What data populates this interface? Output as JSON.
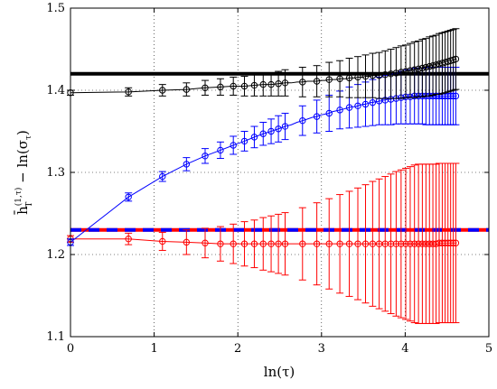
{
  "chart_data": {
    "type": "line",
    "xlabel": "ln(τ)",
    "ylabel": {
      "base": "h̄",
      "sup": "(1,τ)",
      "sub": "T",
      "rest": " − ln(σ",
      "rest_sub": "τ",
      "close": ")"
    },
    "xlim": [
      0,
      5
    ],
    "ylim": [
      1.1,
      1.5
    ],
    "xticks": [
      "0",
      "1",
      "2",
      "3",
      "4",
      "5"
    ],
    "yticks": [
      "1.1",
      "1.2",
      "1.3",
      "1.4",
      "1.5"
    ],
    "grid": true,
    "x": [
      0,
      0.693,
      1.099,
      1.386,
      1.609,
      1.792,
      1.946,
      2.079,
      2.197,
      2.303,
      2.398,
      2.485,
      2.565,
      2.639,
      2.708,
      2.773,
      2.833,
      2.89,
      2.944,
      2.996,
      3.045,
      3.091,
      3.135,
      3.178,
      3.219,
      3.258,
      3.296,
      3.332,
      3.367,
      3.401,
      3.434,
      3.466,
      3.497,
      3.526,
      3.555,
      3.584,
      3.611,
      3.638,
      3.664,
      3.689,
      3.714,
      3.738,
      3.761,
      3.784,
      3.807,
      3.829,
      3.85,
      3.871,
      3.892,
      3.912,
      3.932,
      3.951,
      3.97,
      3.989,
      4.007,
      4.025,
      4.043,
      4.06,
      4.078,
      4.094,
      4.111,
      4.127,
      4.143,
      4.159,
      4.174,
      4.19,
      4.205,
      4.22,
      4.234,
      4.248,
      4.263,
      4.277,
      4.29,
      4.304,
      4.317,
      4.331,
      4.344,
      4.357,
      4.369,
      4.382,
      4.394,
      4.406,
      4.419,
      4.431,
      4.443,
      4.454,
      4.466,
      4.477,
      4.489,
      4.5,
      4.511,
      4.522,
      4.533,
      4.543,
      4.554,
      4.564,
      4.575,
      4.585,
      4.595,
      4.605
    ],
    "series": [
      {
        "color": "#000000",
        "values": [
          1.397,
          1.398,
          1.4,
          1.401,
          1.403,
          1.404,
          1.405,
          1.405,
          1.406,
          1.407,
          1.407,
          1.408,
          1.409,
          1.409,
          1.41,
          1.41,
          1.411,
          1.411,
          1.411,
          1.412,
          1.412,
          1.413,
          1.413,
          1.413,
          1.414,
          1.414,
          1.414,
          1.415,
          1.415,
          1.415,
          1.416,
          1.416,
          1.416,
          1.417,
          1.417,
          1.417,
          1.418,
          1.418,
          1.418,
          1.418,
          1.419,
          1.419,
          1.419,
          1.42,
          1.42,
          1.42,
          1.421,
          1.421,
          1.421,
          1.422,
          1.422,
          1.422,
          1.423,
          1.423,
          1.423,
          1.424,
          1.424,
          1.424,
          1.425,
          1.425,
          1.425,
          1.426,
          1.426,
          1.426,
          1.427,
          1.427,
          1.427,
          1.428,
          1.428,
          1.428,
          1.429,
          1.429,
          1.429,
          1.43,
          1.43,
          1.43,
          1.431,
          1.431,
          1.431,
          1.432,
          1.432,
          1.432,
          1.433,
          1.433,
          1.433,
          1.434,
          1.434,
          1.434,
          1.435,
          1.435,
          1.435,
          1.436,
          1.436,
          1.436,
          1.436,
          1.437,
          1.437,
          1.437,
          1.438,
          1.438
        ],
        "errors": [
          0.003,
          0.005,
          0.007,
          0.008,
          0.009,
          0.01,
          0.011,
          0.012,
          0.013,
          0.014,
          0.014,
          0.015,
          0.016,
          0.016,
          0.017,
          0.018,
          0.018,
          0.019,
          0.019,
          0.02,
          0.02,
          0.021,
          0.021,
          0.022,
          0.022,
          0.023,
          0.023,
          0.024,
          0.024,
          0.024,
          0.025,
          0.025,
          0.026,
          0.026,
          0.026,
          0.027,
          0.027,
          0.027,
          0.028,
          0.028,
          0.028,
          0.029,
          0.029,
          0.029,
          0.03,
          0.03,
          0.03,
          0.031,
          0.031,
          0.031,
          0.031,
          0.032,
          0.032,
          0.032,
          0.032,
          0.033,
          0.033,
          0.033,
          0.033,
          0.033,
          0.034,
          0.034,
          0.034,
          0.034,
          0.034,
          0.035,
          0.035,
          0.035,
          0.035,
          0.035,
          0.035,
          0.036,
          0.036,
          0.036,
          0.036,
          0.036,
          0.036,
          0.036,
          0.036,
          0.036,
          0.037,
          0.037,
          0.037,
          0.037,
          0.037,
          0.037,
          0.037,
          0.037,
          0.037,
          0.037,
          0.037,
          0.037,
          0.037,
          0.037,
          0.037,
          0.037,
          0.037,
          0.037,
          0.037,
          0.037
        ],
        "reference_line": 1.42,
        "reference_style": "solid"
      },
      {
        "color": "#0000ff",
        "values": [
          1.215,
          1.27,
          1.295,
          1.31,
          1.32,
          1.327,
          1.333,
          1.338,
          1.343,
          1.347,
          1.35,
          1.353,
          1.356,
          1.358,
          1.361,
          1.363,
          1.365,
          1.367,
          1.368,
          1.37,
          1.371,
          1.372,
          1.374,
          1.375,
          1.376,
          1.377,
          1.378,
          1.379,
          1.38,
          1.38,
          1.381,
          1.382,
          1.383,
          1.383,
          1.384,
          1.385,
          1.385,
          1.386,
          1.386,
          1.387,
          1.387,
          1.388,
          1.388,
          1.389,
          1.389,
          1.389,
          1.39,
          1.39,
          1.39,
          1.391,
          1.391,
          1.391,
          1.391,
          1.392,
          1.392,
          1.392,
          1.392,
          1.392,
          1.393,
          1.393,
          1.393,
          1.393,
          1.393,
          1.393,
          1.393,
          1.393,
          1.393,
          1.393,
          1.393,
          1.393,
          1.393,
          1.393,
          1.393,
          1.393,
          1.393,
          1.393,
          1.393,
          1.393,
          1.393,
          1.393,
          1.393,
          1.393,
          1.393,
          1.393,
          1.393,
          1.393,
          1.393,
          1.393,
          1.393,
          1.393,
          1.393,
          1.393,
          1.393,
          1.393,
          1.393,
          1.393,
          1.393,
          1.393,
          1.393,
          1.393
        ],
        "errors": [
          0.004,
          0.005,
          0.006,
          0.008,
          0.009,
          0.01,
          0.011,
          0.012,
          0.013,
          0.014,
          0.015,
          0.016,
          0.016,
          0.017,
          0.018,
          0.018,
          0.019,
          0.02,
          0.02,
          0.021,
          0.021,
          0.022,
          0.022,
          0.023,
          0.023,
          0.024,
          0.024,
          0.025,
          0.025,
          0.025,
          0.026,
          0.026,
          0.027,
          0.027,
          0.027,
          0.028,
          0.028,
          0.028,
          0.029,
          0.029,
          0.029,
          0.03,
          0.03,
          0.03,
          0.03,
          0.031,
          0.031,
          0.031,
          0.031,
          0.032,
          0.032,
          0.032,
          0.032,
          0.032,
          0.033,
          0.033,
          0.033,
          0.033,
          0.033,
          0.033,
          0.034,
          0.034,
          0.034,
          0.034,
          0.034,
          0.034,
          0.034,
          0.034,
          0.034,
          0.035,
          0.035,
          0.035,
          0.035,
          0.035,
          0.035,
          0.035,
          0.035,
          0.035,
          0.035,
          0.035,
          0.035,
          0.035,
          0.035,
          0.035,
          0.035,
          0.035,
          0.035,
          0.035,
          0.035,
          0.035,
          0.035,
          0.035,
          0.035,
          0.035,
          0.035,
          0.035,
          0.035,
          0.035,
          0.035,
          0.035
        ],
        "reference_line": 1.23,
        "reference_style": "dashed"
      },
      {
        "color": "#ff0000",
        "values": [
          1.219,
          1.219,
          1.216,
          1.215,
          1.214,
          1.213,
          1.213,
          1.213,
          1.213,
          1.213,
          1.213,
          1.213,
          1.213,
          1.213,
          1.213,
          1.213,
          1.213,
          1.213,
          1.213,
          1.213,
          1.213,
          1.213,
          1.213,
          1.213,
          1.213,
          1.213,
          1.213,
          1.213,
          1.213,
          1.213,
          1.213,
          1.213,
          1.213,
          1.213,
          1.213,
          1.213,
          1.213,
          1.213,
          1.213,
          1.213,
          1.213,
          1.213,
          1.213,
          1.213,
          1.213,
          1.213,
          1.213,
          1.213,
          1.213,
          1.213,
          1.213,
          1.213,
          1.213,
          1.213,
          1.213,
          1.213,
          1.213,
          1.213,
          1.213,
          1.213,
          1.213,
          1.213,
          1.213,
          1.213,
          1.213,
          1.213,
          1.213,
          1.213,
          1.213,
          1.213,
          1.213,
          1.213,
          1.213,
          1.213,
          1.213,
          1.213,
          1.213,
          1.213,
          1.213,
          1.213,
          1.213,
          1.214,
          1.214,
          1.214,
          1.214,
          1.214,
          1.214,
          1.214,
          1.214,
          1.214,
          1.214,
          1.214,
          1.214,
          1.214,
          1.214,
          1.214,
          1.214,
          1.214,
          1.214,
          1.214
        ],
        "errors": [
          0.004,
          0.007,
          0.011,
          0.015,
          0.018,
          0.021,
          0.024,
          0.027,
          0.029,
          0.032,
          0.034,
          0.036,
          0.038,
          0.04,
          0.042,
          0.044,
          0.046,
          0.048,
          0.05,
          0.052,
          0.053,
          0.055,
          0.057,
          0.058,
          0.06,
          0.061,
          0.063,
          0.064,
          0.066,
          0.067,
          0.068,
          0.07,
          0.071,
          0.072,
          0.073,
          0.075,
          0.076,
          0.077,
          0.078,
          0.079,
          0.08,
          0.081,
          0.082,
          0.083,
          0.084,
          0.085,
          0.086,
          0.087,
          0.088,
          0.089,
          0.089,
          0.09,
          0.091,
          0.092,
          0.092,
          0.093,
          0.094,
          0.094,
          0.095,
          0.095,
          0.096,
          0.096,
          0.096,
          0.097,
          0.097,
          0.097,
          0.097,
          0.097,
          0.097,
          0.097,
          0.097,
          0.097,
          0.097,
          0.097,
          0.097,
          0.097,
          0.097,
          0.097,
          0.097,
          0.097,
          0.097,
          0.097,
          0.097,
          0.097,
          0.097,
          0.097,
          0.097,
          0.097,
          0.097,
          0.097,
          0.097,
          0.097,
          0.097,
          0.097,
          0.097,
          0.097,
          0.097,
          0.097,
          0.097,
          0.097
        ],
        "reference_line": 1.23,
        "reference_style": "solid-under"
      }
    ]
  }
}
